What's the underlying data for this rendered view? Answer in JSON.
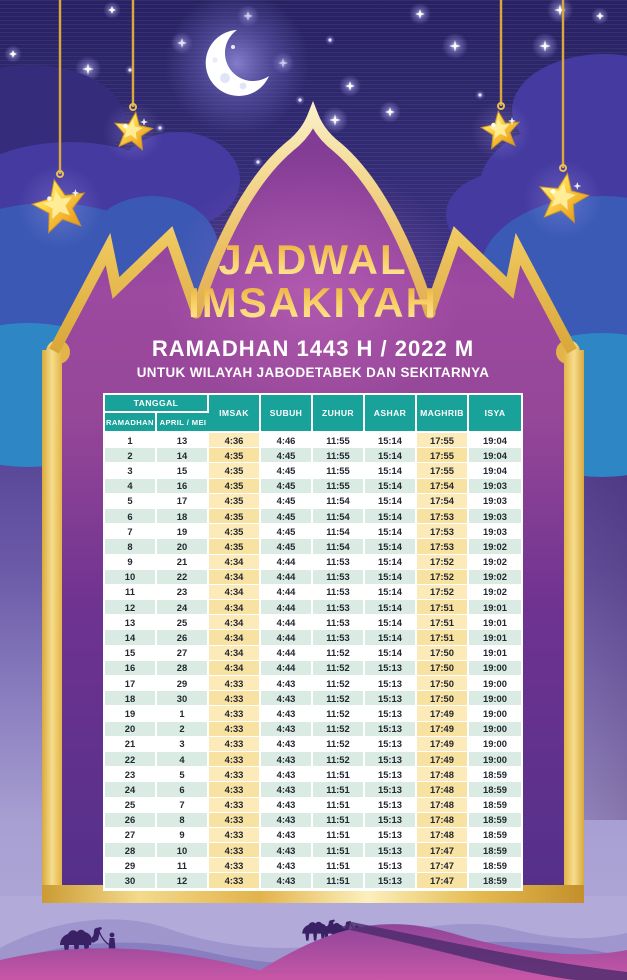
{
  "poster": {
    "title_line1": "JADWAL",
    "title_line2": "IMSAKIYAH",
    "subtitle": "RAMADHAN 1443 H / 2022 M",
    "region_line": "UNTUK WILAYAH JABODETABEK DAN SEKITARNYA"
  },
  "table": {
    "header_group": "TANGGAL",
    "columns": [
      "RAMADHAN",
      "APRIL / MEI",
      "IMSAK",
      "SUBUH",
      "ZUHUR",
      "ASHAR",
      "MAGHRIB",
      "ISYA"
    ],
    "rows": [
      [
        "1",
        "13",
        "4:36",
        "4:46",
        "11:55",
        "15:14",
        "17:55",
        "19:04"
      ],
      [
        "2",
        "14",
        "4:35",
        "4:45",
        "11:55",
        "15:14",
        "17:55",
        "19:04"
      ],
      [
        "3",
        "15",
        "4:35",
        "4:45",
        "11:55",
        "15:14",
        "17:55",
        "19:04"
      ],
      [
        "4",
        "16",
        "4:35",
        "4:45",
        "11:55",
        "15:14",
        "17:54",
        "19:03"
      ],
      [
        "5",
        "17",
        "4:35",
        "4:45",
        "11:54",
        "15:14",
        "17:54",
        "19:03"
      ],
      [
        "6",
        "18",
        "4:35",
        "4:45",
        "11:54",
        "15:14",
        "17:53",
        "19:03"
      ],
      [
        "7",
        "19",
        "4:35",
        "4:45",
        "11:54",
        "15:14",
        "17:53",
        "19:03"
      ],
      [
        "8",
        "20",
        "4:35",
        "4:45",
        "11:54",
        "15:14",
        "17:53",
        "19:02"
      ],
      [
        "9",
        "21",
        "4:34",
        "4:44",
        "11:53",
        "15:14",
        "17:52",
        "19:02"
      ],
      [
        "10",
        "22",
        "4:34",
        "4:44",
        "11:53",
        "15:14",
        "17:52",
        "19:02"
      ],
      [
        "11",
        "23",
        "4:34",
        "4:44",
        "11:53",
        "15:14",
        "17:52",
        "19:02"
      ],
      [
        "12",
        "24",
        "4:34",
        "4:44",
        "11:53",
        "15:14",
        "17:51",
        "19:01"
      ],
      [
        "13",
        "25",
        "4:34",
        "4:44",
        "11:53",
        "15:14",
        "17:51",
        "19:01"
      ],
      [
        "14",
        "26",
        "4:34",
        "4:44",
        "11:53",
        "15:14",
        "17:51",
        "19:01"
      ],
      [
        "15",
        "27",
        "4:34",
        "4:44",
        "11:52",
        "15:14",
        "17:50",
        "19:01"
      ],
      [
        "16",
        "28",
        "4:34",
        "4:44",
        "11:52",
        "15:13",
        "17:50",
        "19:00"
      ],
      [
        "17",
        "29",
        "4:33",
        "4:43",
        "11:52",
        "15:13",
        "17:50",
        "19:00"
      ],
      [
        "18",
        "30",
        "4:33",
        "4:43",
        "11:52",
        "15:13",
        "17:50",
        "19:00"
      ],
      [
        "19",
        "1",
        "4:33",
        "4:43",
        "11:52",
        "15:13",
        "17:49",
        "19:00"
      ],
      [
        "20",
        "2",
        "4:33",
        "4:43",
        "11:52",
        "15:13",
        "17:49",
        "19:00"
      ],
      [
        "21",
        "3",
        "4:33",
        "4:43",
        "11:52",
        "15:13",
        "17:49",
        "19:00"
      ],
      [
        "22",
        "4",
        "4:33",
        "4:43",
        "11:52",
        "15:13",
        "17:49",
        "19:00"
      ],
      [
        "23",
        "5",
        "4:33",
        "4:43",
        "11:51",
        "15:13",
        "17:48",
        "18:59"
      ],
      [
        "24",
        "6",
        "4:33",
        "4:43",
        "11:51",
        "15:13",
        "17:48",
        "18:59"
      ],
      [
        "25",
        "7",
        "4:33",
        "4:43",
        "11:51",
        "15:13",
        "17:48",
        "18:59"
      ],
      [
        "26",
        "8",
        "4:33",
        "4:43",
        "11:51",
        "15:13",
        "17:48",
        "18:59"
      ],
      [
        "27",
        "9",
        "4:33",
        "4:43",
        "11:51",
        "15:13",
        "17:48",
        "18:59"
      ],
      [
        "28",
        "10",
        "4:33",
        "4:43",
        "11:51",
        "15:13",
        "17:47",
        "18:59"
      ],
      [
        "29",
        "11",
        "4:33",
        "4:43",
        "11:51",
        "15:13",
        "17:47",
        "18:59"
      ],
      [
        "30",
        "12",
        "4:33",
        "4:43",
        "11:51",
        "15:13",
        "17:47",
        "18:59"
      ]
    ]
  },
  "icons": {
    "moon": "crescent-moon-icon",
    "hanging_stars": "hanging-gold-star-icon",
    "sparkles": "sparkle-star-icon",
    "camels": "camel-caravan-icon"
  },
  "colors": {
    "header_teal": "#18a29a",
    "highlight_cream": "#fcebb8",
    "row_mint": "#d9ebe3",
    "gold": "#e9c054",
    "panel_purple": "#8a3e97",
    "night_sky": "#2a2565",
    "desert_pink": "#c857a6"
  }
}
